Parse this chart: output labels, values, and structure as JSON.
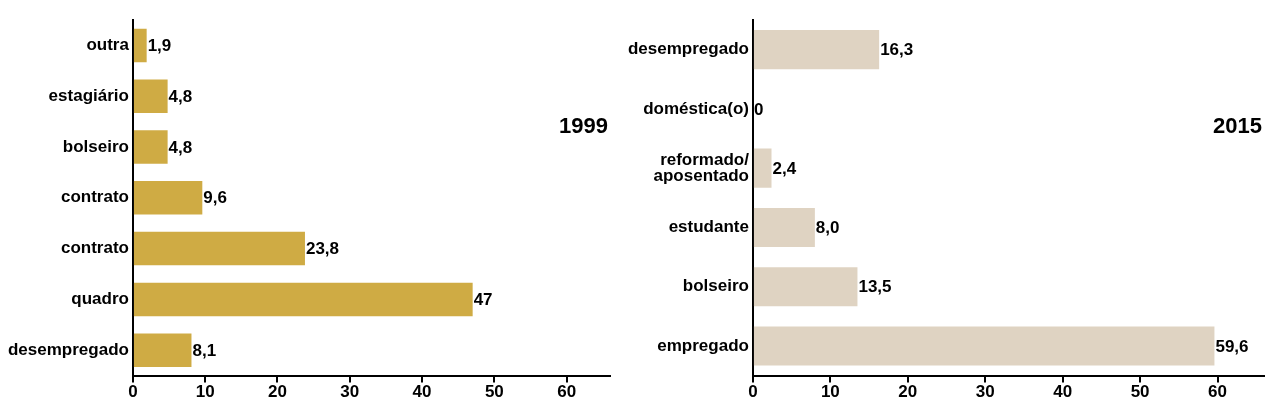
{
  "chart_data": [
    {
      "type": "bar",
      "orientation": "horizontal",
      "title": "1999",
      "categories": [
        "outra",
        "estagiário",
        "bolseiro",
        "contrato",
        "contrato",
        "quadro",
        "desempregado"
      ],
      "values": [
        1.9,
        4.8,
        4.8,
        9.6,
        23.8,
        47,
        8.1
      ],
      "value_labels": [
        "1,9",
        "4,8",
        "4,8",
        "9,6",
        "23,8",
        "47",
        "8,1"
      ],
      "color": "#cfab44",
      "xlim": [
        0,
        66
      ],
      "xticks": [
        0,
        10,
        20,
        30,
        40,
        50,
        60
      ],
      "grid": false,
      "legend": false
    },
    {
      "type": "bar",
      "orientation": "horizontal",
      "title": "2015",
      "categories": [
        "desempregado",
        "doméstica(o)",
        "reformado/\naposentado",
        "estudante",
        "bolseiro",
        "empregado"
      ],
      "values": [
        16.3,
        0,
        2.4,
        8.0,
        13.5,
        59.6
      ],
      "value_labels": [
        "16,3",
        "0",
        "2,4",
        "8,0",
        "13,5",
        "59,6"
      ],
      "color": "#dfd3c2",
      "xlim": [
        0,
        66
      ],
      "xticks": [
        0,
        10,
        20,
        30,
        40,
        50,
        60
      ],
      "grid": false,
      "legend": false
    }
  ]
}
